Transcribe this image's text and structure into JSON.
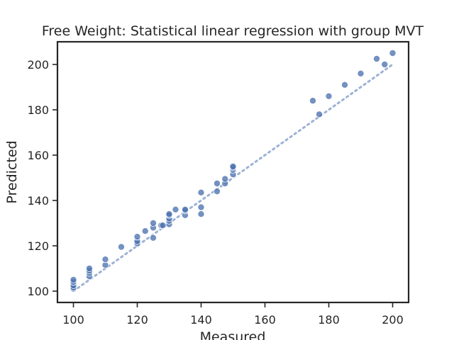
{
  "chart_data": {
    "type": "scatter",
    "title": "Free Weight: Statistical linear regression with group MVT",
    "xlabel": "Measured",
    "ylabel": "Predicted",
    "xlim": [
      95,
      205
    ],
    "ylim": [
      95,
      210
    ],
    "xticks": [
      100,
      120,
      140,
      160,
      180,
      200
    ],
    "yticks": [
      100,
      120,
      140,
      160,
      180,
      200
    ],
    "grid": false,
    "legend": "none",
    "colors": {
      "points": "#4c72b0",
      "point_edge": "#ffffff",
      "line": "#4c72b0",
      "axes": "#262626"
    },
    "reference_line": {
      "style": "dotted",
      "x": [
        100,
        200
      ],
      "y": [
        100,
        200
      ]
    },
    "points": [
      [
        100,
        101
      ],
      [
        100,
        101.5
      ],
      [
        100,
        102.5
      ],
      [
        100,
        104
      ],
      [
        100,
        105
      ],
      [
        105,
        106.5
      ],
      [
        105,
        108
      ],
      [
        105,
        109
      ],
      [
        105,
        110
      ],
      [
        110,
        111.5
      ],
      [
        110,
        114
      ],
      [
        115,
        119.5
      ],
      [
        120,
        121
      ],
      [
        120,
        122
      ],
      [
        120,
        124
      ],
      [
        122.5,
        126.5
      ],
      [
        125,
        123.5
      ],
      [
        125,
        128
      ],
      [
        125,
        130
      ],
      [
        127.5,
        129
      ],
      [
        128,
        129
      ],
      [
        130,
        129.5
      ],
      [
        130,
        131
      ],
      [
        130,
        132
      ],
      [
        130,
        133.5
      ],
      [
        130,
        134
      ],
      [
        132,
        136
      ],
      [
        135,
        133.5
      ],
      [
        135,
        135.5
      ],
      [
        135,
        136
      ],
      [
        140,
        134
      ],
      [
        140,
        137
      ],
      [
        140,
        143.5
      ],
      [
        145,
        144
      ],
      [
        145,
        147.5
      ],
      [
        147.5,
        147.5
      ],
      [
        147.5,
        149.5
      ],
      [
        150,
        151.5
      ],
      [
        150,
        153.5
      ],
      [
        150,
        154.5
      ],
      [
        150,
        155
      ],
      [
        175,
        184
      ],
      [
        177,
        178
      ],
      [
        180,
        186
      ],
      [
        185,
        191
      ],
      [
        190,
        196
      ],
      [
        195,
        202.5
      ],
      [
        197.5,
        200
      ],
      [
        200,
        205
      ]
    ]
  }
}
